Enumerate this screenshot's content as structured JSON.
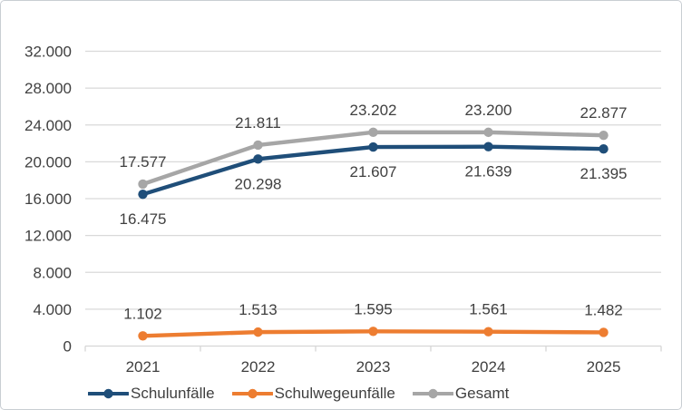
{
  "chart_data": {
    "type": "line",
    "title": "",
    "categories": [
      "2021",
      "2022",
      "2023",
      "2024",
      "2025"
    ],
    "series": [
      {
        "name": "Schulunfälle",
        "color": "#1F4E79",
        "values": [
          16475,
          20298,
          21607,
          21639,
          21395
        ],
        "labels": [
          "16.475",
          "20.298",
          "21.607",
          "21.639",
          "21.395"
        ],
        "label_position": "below"
      },
      {
        "name": "Schulwegeunfälle",
        "color": "#ED7D31",
        "values": [
          1102,
          1513,
          1595,
          1561,
          1482
        ],
        "labels": [
          "1.102",
          "1.513",
          "1.595",
          "1.561",
          "1.482"
        ],
        "label_position": "above"
      },
      {
        "name": "Gesamt",
        "color": "#A6A6A6",
        "values": [
          17577,
          21811,
          23202,
          23200,
          22877
        ],
        "labels": [
          "17.577",
          "21.811",
          "23.202",
          "23.200",
          "22.877"
        ],
        "label_position": "above"
      }
    ],
    "y_axis": {
      "min": 0,
      "max": 32000,
      "tick_step": 4000,
      "tick_labels": [
        "0",
        "4.000",
        "8.000",
        "12.000",
        "16.000",
        "20.000",
        "24.000",
        "28.000",
        "32.000"
      ]
    },
    "x_axis": {
      "labels": [
        "2021",
        "2022",
        "2023",
        "2024",
        "2025"
      ]
    },
    "legend": {
      "position": "bottom",
      "entries": [
        "Schulunfälle",
        "Schulwegeunfälle",
        "Gesamt"
      ]
    },
    "grid": true
  },
  "styles": {
    "text_color": "#404040",
    "grid_color": "#D9D9D9",
    "axis_color": "#D6D6D6",
    "background": "#FFFFFF",
    "border_color": "#C9CED3"
  }
}
